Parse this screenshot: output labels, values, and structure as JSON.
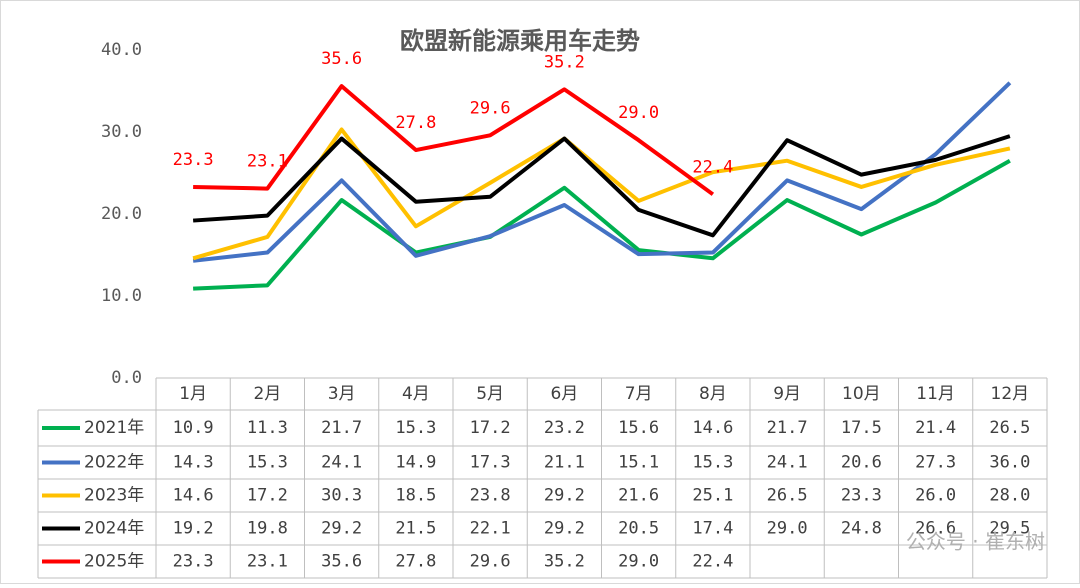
{
  "chart_data": {
    "type": "line",
    "title": "欧盟新能源乘用车走势",
    "categories": [
      "1月",
      "2月",
      "3月",
      "4月",
      "5月",
      "6月",
      "7月",
      "8月",
      "9月",
      "10月",
      "11月",
      "12月"
    ],
    "ylim": [
      0,
      40
    ],
    "yticks": [
      {
        "value": 0,
        "label": "0.0"
      },
      {
        "value": 10,
        "label": "10.0"
      },
      {
        "value": 20,
        "label": "20.0"
      },
      {
        "value": 30,
        "label": "30.0"
      },
      {
        "value": 40,
        "label": "40.0"
      }
    ],
    "series": [
      {
        "name": "2021年",
        "color": "#00b050",
        "values": [
          10.9,
          11.3,
          21.7,
          15.3,
          17.2,
          23.2,
          15.6,
          14.6,
          21.7,
          17.5,
          21.4,
          26.5
        ],
        "value_labels": [
          "10.9",
          "11.3",
          "21.7",
          "15.3",
          "17.2",
          "23.2",
          "15.6",
          "14.6",
          "21.7",
          "17.5",
          "21.4",
          "26.5"
        ]
      },
      {
        "name": "2022年",
        "color": "#4472c4",
        "values": [
          14.3,
          15.3,
          24.1,
          14.9,
          17.3,
          21.1,
          15.1,
          15.3,
          24.1,
          20.6,
          27.3,
          36
        ],
        "value_labels": [
          "14.3",
          "15.3",
          "24.1",
          "14.9",
          "17.3",
          "21.1",
          "15.1",
          "15.3",
          "24.1",
          "20.6",
          "27.3",
          "36.0"
        ]
      },
      {
        "name": "2023年",
        "color": "#ffc000",
        "values": [
          14.6,
          17.2,
          30.3,
          18.5,
          23.8,
          29.2,
          21.6,
          25.1,
          26.5,
          23.3,
          26,
          28
        ],
        "value_labels": [
          "14.6",
          "17.2",
          "30.3",
          "18.5",
          "23.8",
          "29.2",
          "21.6",
          "25.1",
          "26.5",
          "23.3",
          "26.0",
          "28.0"
        ]
      },
      {
        "name": "2024年",
        "color": "#000000",
        "values": [
          19.2,
          19.8,
          29.2,
          21.5,
          22.1,
          29.2,
          20.5,
          17.4,
          29,
          24.8,
          26.6,
          29.5
        ],
        "value_labels": [
          "19.2",
          "19.8",
          "29.2",
          "21.5",
          "22.1",
          "29.2",
          "20.5",
          "17.4",
          "29.0",
          "24.8",
          "26.6",
          "29.5"
        ]
      },
      {
        "name": "2025年",
        "color": "#ff0000",
        "values": [
          23.3,
          23.1,
          35.6,
          27.8,
          29.6,
          35.2,
          29,
          22.4,
          null,
          null,
          null,
          null
        ],
        "value_labels": [
          "23.3",
          "23.1",
          "35.6",
          "27.8",
          "29.6",
          "35.2",
          "29.0",
          "22.4",
          null,
          null,
          null,
          null
        ],
        "data_labels": true
      }
    ]
  },
  "watermark": "公众号 · 崔东树"
}
